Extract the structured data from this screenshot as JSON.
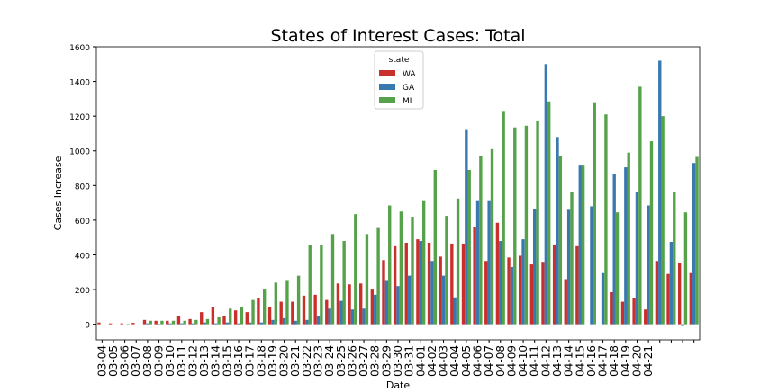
{
  "chart_data": {
    "type": "grouped-bar",
    "title": "States of Interest Cases: Total",
    "x_label": "Date",
    "y_label": "Cases Increase",
    "legend_title": "state",
    "legend_position": "upper center",
    "categories": [
      "03-04",
      "03-05",
      "03-06",
      "03-07",
      "03-08",
      "03-09",
      "03-10",
      "03-11",
      "03-12",
      "03-13",
      "03-14",
      "03-15",
      "03-16",
      "03-17",
      "03-18",
      "03-19",
      "03-20",
      "03-21",
      "03-22",
      "03-23",
      "03-24",
      "03-25",
      "03-26",
      "03-27",
      "03-28",
      "03-29",
      "03-30",
      "03-31",
      "04-01",
      "04-02",
      "04-03",
      "04-04",
      "04-05",
      "04-06",
      "04-07",
      "04-08",
      "04-09",
      "04-10",
      "04-11",
      "04-12",
      "04-13",
      "04-14",
      "04-15",
      "04-16",
      "04-17",
      "04-18",
      "04-19",
      "04-20",
      "04-21",
      null,
      null,
      null,
      null
    ],
    "series": [
      {
        "name": "WA",
        "color": "#c9302c",
        "values": [
          10,
          5,
          5,
          8,
          25,
          20,
          20,
          50,
          30,
          70,
          100,
          50,
          80,
          70,
          150,
          100,
          130,
          130,
          165,
          170,
          140,
          235,
          230,
          235,
          205,
          370,
          450,
          470,
          490,
          470,
          390,
          465,
          465,
          560,
          365,
          585,
          385,
          395,
          345,
          360,
          460,
          260,
          450,
          0,
          0,
          185,
          130,
          150,
          85,
          365,
          290,
          355,
          295
        ]
      },
      {
        "name": "GA",
        "color": "#3a78b0",
        "values": [
          0,
          0,
          0,
          0,
          5,
          2,
          5,
          5,
          5,
          10,
          5,
          10,
          5,
          10,
          10,
          25,
          35,
          20,
          25,
          50,
          90,
          135,
          85,
          90,
          170,
          255,
          220,
          280,
          480,
          365,
          280,
          155,
          1120,
          710,
          710,
          480,
          330,
          490,
          665,
          1500,
          1080,
          660,
          915,
          680,
          295,
          865,
          905,
          765,
          685,
          1520,
          475,
          -10,
          930
        ]
      },
      {
        "name": "MI",
        "color": "#55a24a",
        "values": [
          0,
          0,
          2,
          0,
          20,
          20,
          20,
          20,
          25,
          30,
          40,
          90,
          100,
          140,
          205,
          240,
          255,
          280,
          455,
          460,
          520,
          480,
          635,
          520,
          555,
          685,
          650,
          620,
          710,
          890,
          625,
          725,
          890,
          970,
          1010,
          1225,
          1135,
          1145,
          1170,
          1285,
          970,
          765,
          915,
          1275,
          1210,
          645,
          990,
          1370,
          1055,
          1200,
          765,
          645,
          965
        ]
      }
    ],
    "ylim": [
      -90,
      1600
    ],
    "yticks": [
      0,
      200,
      400,
      600,
      800,
      1000,
      1200,
      1400,
      1600
    ]
  }
}
